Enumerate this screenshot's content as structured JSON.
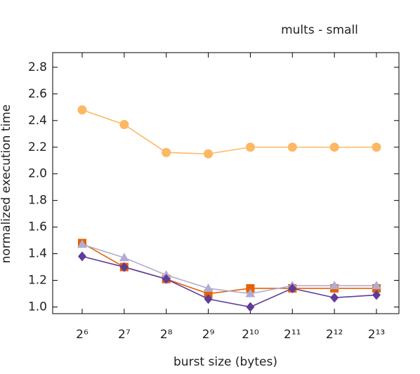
{
  "chart_data": {
    "type": "line",
    "title": "mults - small",
    "x_label": "burst size (bytes)",
    "y_label": "normalized execution time",
    "categories": [
      "2⁶",
      "2⁷",
      "2⁸",
      "2⁹",
      "2¹⁰",
      "2¹¹",
      "2¹²",
      "2¹³"
    ],
    "series": [
      {
        "color": "#fdb863",
        "marker": "circle",
        "values": [
          2.48,
          2.37,
          2.16,
          2.15,
          2.2,
          2.2,
          2.2,
          2.2
        ]
      },
      {
        "color": "#e66101",
        "marker": "square",
        "values": [
          1.48,
          1.3,
          1.21,
          1.1,
          1.14,
          1.14,
          1.14,
          1.14
        ]
      },
      {
        "color": "#b2abd2",
        "marker": "triangle",
        "values": [
          1.47,
          1.37,
          1.24,
          1.14,
          1.1,
          1.16,
          1.16,
          1.16
        ]
      },
      {
        "color": "#5e3c99",
        "marker": "diamond",
        "values": [
          1.38,
          1.3,
          1.21,
          1.06,
          1.0,
          1.14,
          1.07,
          1.09
        ]
      }
    ],
    "ylim": [
      0.95,
      2.91
    ],
    "yticks": [
      {
        "value": 1,
        "label": "1.0"
      },
      1.2,
      1.4,
      1.6,
      1.8,
      {
        "value": 2,
        "label": "2.0"
      },
      2.2,
      2.4,
      2.6,
      2.8
    ],
    "grid": false
  }
}
